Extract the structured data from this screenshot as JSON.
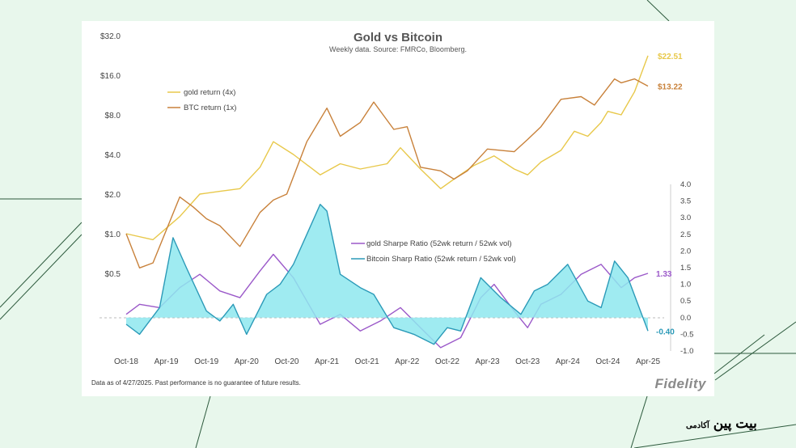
{
  "chart_data": {
    "type": "line",
    "title": "Gold vs Bitcoin",
    "subtitle": "Weekly data.  Source: FMRCo, Bloomberg.",
    "x_tick_labels": [
      "Oct-18",
      "Apr-19",
      "Oct-19",
      "Apr-20",
      "Oct-20",
      "Apr-21",
      "Oct-21",
      "Apr-22",
      "Oct-22",
      "Apr-23",
      "Oct-23",
      "Apr-24",
      "Oct-24",
      "Apr-25"
    ],
    "left_axis": {
      "scale": "log2",
      "ticks": [
        0.5,
        1,
        2,
        4,
        8,
        16,
        32
      ],
      "tick_labels": [
        "$0.5",
        "$1.0",
        "$2.0",
        "$4.0",
        "$8.0",
        "$16.0",
        "$32.0"
      ],
      "ylim": [
        0.5,
        32
      ]
    },
    "right_axis": {
      "ticks": [
        -1,
        -0.5,
        0,
        0.5,
        1,
        1.5,
        2,
        2.5,
        3,
        3.5,
        4
      ],
      "tick_labels": [
        "-1.0",
        "-0.5",
        "0.0",
        "0.5",
        "1.0",
        "1.5",
        "2.0",
        "2.5",
        "3.0",
        "3.5",
        "4.0"
      ],
      "ylim": [
        -1,
        4
      ]
    },
    "price_legend": [
      "gold return (4x)",
      "BTC return (1x)"
    ],
    "sharpe_legend": [
      "gold Sharpe Ratio (52wk return / 52wk vol)",
      "Bitcoin Sharp Ratio (52wk return / 52wk vol)"
    ],
    "x_date_range": [
      "2018-10",
      "2025-04"
    ],
    "series": [
      {
        "name": "gold return (4x)",
        "axis": "left",
        "color": "#e8c84a",
        "x": [
          "2018-10",
          "2019-02",
          "2019-06",
          "2019-09",
          "2019-12",
          "2020-03",
          "2020-06",
          "2020-08",
          "2020-11",
          "2021-03",
          "2021-06",
          "2021-09",
          "2022-01",
          "2022-03",
          "2022-06",
          "2022-09",
          "2022-11",
          "2023-02",
          "2023-05",
          "2023-08",
          "2023-10",
          "2023-12",
          "2024-03",
          "2024-05",
          "2024-07",
          "2024-09",
          "2024-10",
          "2024-12",
          "2025-02",
          "2025-04"
        ],
        "values": [
          1.0,
          0.9,
          1.35,
          2.0,
          2.1,
          2.2,
          3.2,
          5.0,
          4.0,
          2.8,
          3.4,
          3.1,
          3.4,
          4.5,
          3.1,
          2.2,
          2.6,
          3.3,
          3.9,
          3.1,
          2.8,
          3.5,
          4.3,
          6.0,
          5.5,
          7.0,
          8.5,
          8.0,
          12.0,
          22.51
        ],
        "end_label": "$22.51"
      },
      {
        "name": "BTC return (1x)",
        "axis": "left",
        "color": "#c8813a",
        "x": [
          "2018-10",
          "2018-12",
          "2019-02",
          "2019-06",
          "2019-08",
          "2019-10",
          "2019-12",
          "2020-03",
          "2020-06",
          "2020-08",
          "2020-10",
          "2021-01",
          "2021-04",
          "2021-06",
          "2021-09",
          "2021-11",
          "2022-02",
          "2022-04",
          "2022-06",
          "2022-09",
          "2022-11",
          "2023-01",
          "2023-04",
          "2023-08",
          "2023-10",
          "2023-12",
          "2024-03",
          "2024-06",
          "2024-08",
          "2024-11",
          "2024-12",
          "2025-02",
          "2025-04"
        ],
        "values": [
          1.0,
          0.55,
          0.6,
          1.9,
          1.6,
          1.3,
          1.15,
          0.8,
          1.45,
          1.8,
          2.0,
          5.0,
          9.0,
          5.5,
          7.0,
          10.0,
          6.2,
          6.5,
          3.2,
          3.0,
          2.6,
          3.0,
          4.4,
          4.2,
          5.2,
          6.5,
          10.5,
          11.0,
          9.5,
          15.0,
          14.0,
          15.0,
          13.22
        ],
        "end_label": "$13.22"
      },
      {
        "name": "gold Sharpe Ratio (52wk return / 52wk vol)",
        "axis": "right",
        "color": "#9b59c9",
        "x": [
          "2018-10",
          "2018-12",
          "2019-03",
          "2019-06",
          "2019-09",
          "2019-12",
          "2020-03",
          "2020-06",
          "2020-08",
          "2020-11",
          "2021-03",
          "2021-06",
          "2021-09",
          "2021-12",
          "2022-03",
          "2022-06",
          "2022-09",
          "2022-12",
          "2023-03",
          "2023-05",
          "2023-08",
          "2023-10",
          "2023-12",
          "2024-03",
          "2024-06",
          "2024-09",
          "2024-12",
          "2025-02",
          "2025-04"
        ],
        "values": [
          0.1,
          0.4,
          0.3,
          0.9,
          1.3,
          0.8,
          0.6,
          1.4,
          1.9,
          1.2,
          -0.2,
          0.1,
          -0.4,
          -0.1,
          0.3,
          -0.3,
          -0.9,
          -0.6,
          0.6,
          1.0,
          0.2,
          -0.3,
          0.4,
          0.7,
          1.3,
          1.6,
          0.9,
          1.2,
          1.33
        ],
        "end_label": "1.33"
      },
      {
        "name": "Bitcoin Sharp Ratio (52wk return / 52wk vol)",
        "axis": "right",
        "color": "#2b9ab8",
        "fill": "#8ee8ee",
        "x": [
          "2018-10",
          "2018-12",
          "2019-03",
          "2019-05",
          "2019-07",
          "2019-10",
          "2019-12",
          "2020-02",
          "2020-04",
          "2020-07",
          "2020-09",
          "2020-11",
          "2021-01",
          "2021-03",
          "2021-04",
          "2021-06",
          "2021-09",
          "2021-11",
          "2022-02",
          "2022-05",
          "2022-08",
          "2022-10",
          "2022-12",
          "2023-03",
          "2023-06",
          "2023-09",
          "2023-11",
          "2024-01",
          "2024-04",
          "2024-07",
          "2024-09",
          "2024-11",
          "2025-01",
          "2025-04"
        ],
        "values": [
          -0.2,
          -0.5,
          0.3,
          2.4,
          1.5,
          0.2,
          -0.1,
          0.4,
          -0.5,
          0.7,
          1.0,
          1.6,
          2.5,
          3.4,
          3.2,
          1.3,
          0.9,
          0.7,
          -0.3,
          -0.5,
          -0.8,
          -0.3,
          -0.4,
          1.2,
          0.6,
          0.1,
          0.8,
          1.0,
          1.6,
          0.5,
          0.3,
          1.7,
          1.2,
          -0.4
        ],
        "end_label": "-0.40"
      }
    ]
  },
  "footnote": "Data as of 4/27/2025. Past performance is no guarantee of future results.",
  "logo_text": "Fidelity",
  "brand": {
    "name": "بیت پین",
    "tag": "آکادمی"
  }
}
